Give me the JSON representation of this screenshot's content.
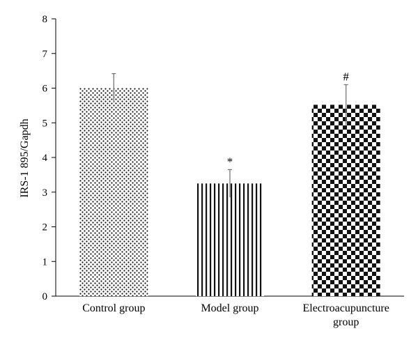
{
  "chart_data": {
    "type": "bar",
    "title": "",
    "xlabel": "",
    "ylabel": "IRS-1 895/Gapdh",
    "ylim": [
      0,
      8
    ],
    "yticks": [
      0,
      1,
      2,
      3,
      4,
      5,
      6,
      7,
      8
    ],
    "grid": false,
    "categories": [
      [
        "Control group"
      ],
      [
        "Model group"
      ],
      [
        "Electroacupuncture",
        "group"
      ]
    ],
    "values": [
      6.0,
      3.25,
      5.52
    ],
    "errors": [
      0.42,
      0.4,
      0.58
    ],
    "annotations": [
      "",
      "*",
      "#"
    ],
    "patterns": [
      "dots",
      "vertical-stripes",
      "checkerboard"
    ],
    "colors": {
      "bar_fill": "#111111",
      "background": "#ffffff",
      "axis": "#000000",
      "error_bar": "#777777"
    }
  }
}
